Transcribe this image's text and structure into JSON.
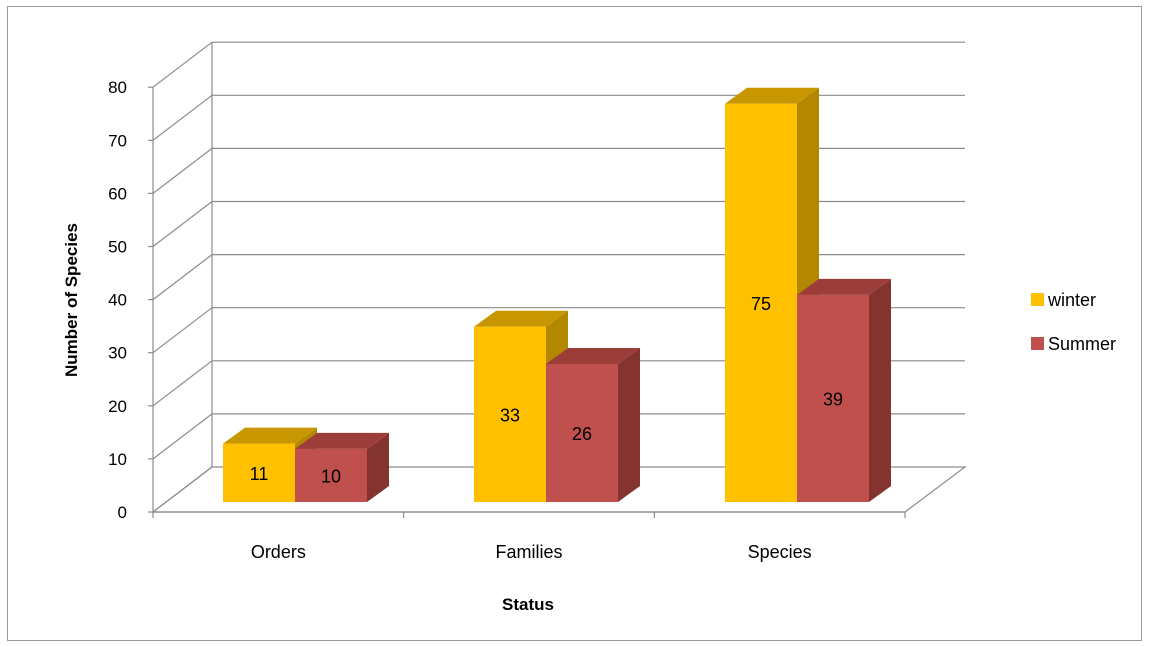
{
  "chart_data": {
    "type": "bar",
    "categories": [
      "Orders",
      "Families",
      "Species"
    ],
    "series": [
      {
        "name": "winter",
        "values": [
          11,
          33,
          75
        ],
        "color": "#FFC000",
        "top_color": "#C79600",
        "side_color": "#B38700"
      },
      {
        "name": "Summer",
        "values": [
          10,
          26,
          39
        ],
        "color": "#C0504D",
        "top_color": "#9C3D3A",
        "side_color": "#84332F"
      }
    ],
    "title": "",
    "xlabel": "Status",
    "ylabel": "Number of Species",
    "ylim": [
      0,
      80
    ],
    "yticks": [
      0,
      10,
      20,
      30,
      40,
      50,
      60,
      70,
      80
    ],
    "grid": true,
    "legend_position": "right",
    "style": "3d-clustered-column"
  }
}
